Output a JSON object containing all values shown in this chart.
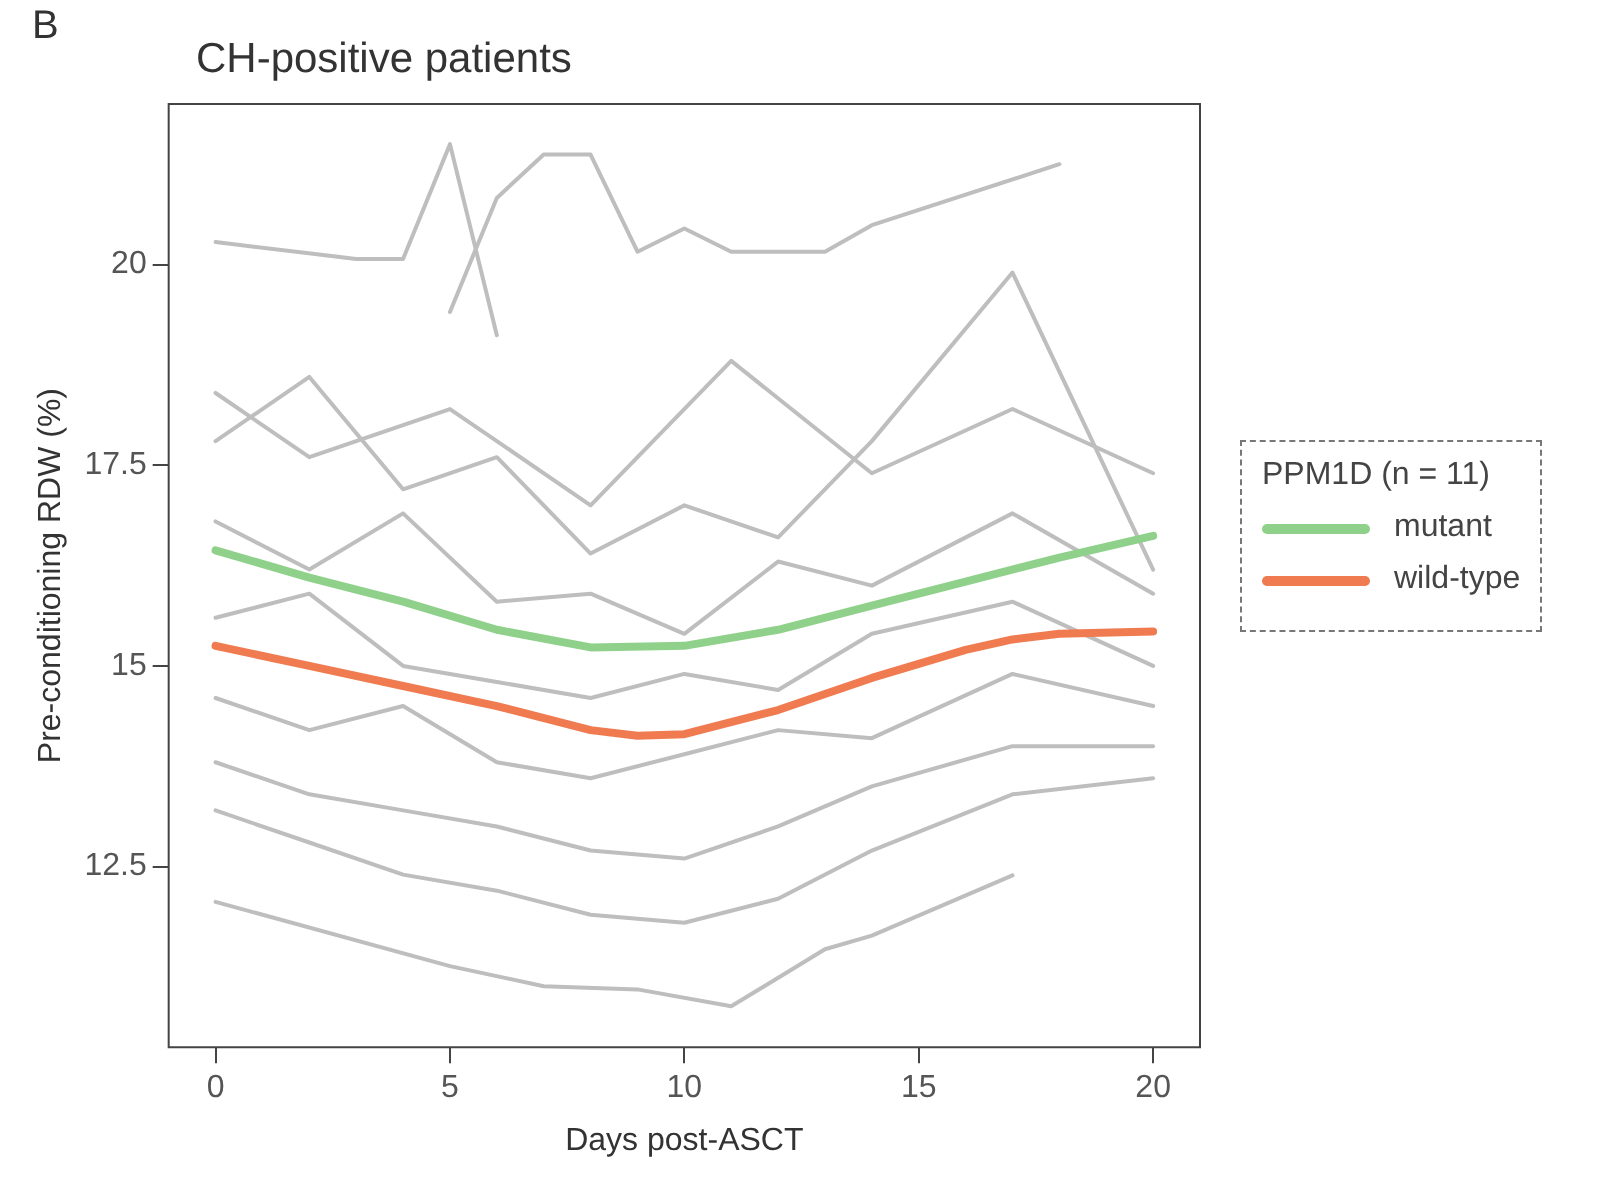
{
  "chart_data": {
    "type": "line",
    "title": "CH-positive patients",
    "xlabel": "Days post-ASCT",
    "ylabel": "Pre-conditioning RDW (%)",
    "legend_title": "PPM1D (n = 11)",
    "annotations": [
      "B"
    ],
    "xlim": [
      -1,
      21
    ],
    "ylim": [
      10.25,
      22
    ],
    "xticks": [
      0,
      5,
      10,
      15,
      20
    ],
    "yticks": [
      {
        "value": 12.5,
        "label": "12.5"
      },
      15,
      {
        "value": 17.5,
        "label": "17.5"
      },
      20
    ],
    "grid": false,
    "legend": "right",
    "marker": "none",
    "line_style": "solid",
    "series": [
      {
        "color": "#bebebe",
        "x": [
          0,
          3,
          4,
          5,
          6
        ],
        "values": [
          20.28,
          20.07,
          20.07,
          21.5,
          19.12
        ]
      },
      {
        "color": "#bebebe",
        "x": [
          5,
          6,
          7,
          8,
          9,
          10,
          11,
          12,
          13,
          14,
          18
        ],
        "values": [
          19.41,
          20.83,
          21.37,
          21.37,
          20.16,
          20.45,
          20.16,
          20.16,
          20.16,
          20.49,
          21.25
        ]
      },
      {
        "color": "#bebebe",
        "x": [
          0,
          5,
          7,
          9,
          11,
          13,
          14,
          17
        ],
        "values": [
          12.06,
          11.26,
          11.01,
          10.97,
          10.76,
          11.47,
          11.64,
          12.39
        ]
      },
      {
        "color": "#bebebe",
        "x": [
          0,
          2,
          4,
          6,
          8,
          10,
          12,
          14,
          17,
          20
        ],
        "values": [
          17.8,
          18.6,
          17.2,
          17.6,
          16.4,
          17.0,
          16.6,
          17.8,
          19.9,
          16.2
        ]
      },
      {
        "color": "#bebebe",
        "x": [
          0,
          2,
          4,
          6,
          8,
          10,
          12,
          14,
          17,
          20
        ],
        "values": [
          16.8,
          16.2,
          16.9,
          15.8,
          15.9,
          15.4,
          16.3,
          16.0,
          16.9,
          15.9
        ]
      },
      {
        "color": "#bebebe",
        "x": [
          0,
          2,
          4,
          6,
          8,
          10,
          12,
          14,
          17,
          20
        ],
        "values": [
          15.6,
          15.9,
          15.0,
          14.8,
          14.6,
          14.9,
          14.7,
          15.4,
          15.8,
          15.0
        ]
      },
      {
        "color": "#bebebe",
        "x": [
          0,
          2,
          4,
          6,
          8,
          10,
          12,
          14,
          17,
          20
        ],
        "values": [
          14.6,
          14.2,
          14.5,
          13.8,
          13.6,
          13.9,
          14.2,
          14.1,
          14.9,
          14.5
        ]
      },
      {
        "color": "#bebebe",
        "x": [
          0,
          2,
          4,
          6,
          8,
          10,
          12,
          14,
          17,
          20
        ],
        "values": [
          13.8,
          13.4,
          13.2,
          13.0,
          12.7,
          12.6,
          13.0,
          13.5,
          14.0,
          14.0
        ]
      },
      {
        "color": "#bebebe",
        "x": [
          0,
          2,
          4,
          6,
          8,
          10,
          12,
          14,
          17,
          20
        ],
        "values": [
          13.2,
          12.8,
          12.4,
          12.2,
          11.9,
          11.8,
          12.1,
          12.7,
          13.4,
          13.6
        ]
      },
      {
        "color": "#bebebe",
        "x": [
          0,
          2,
          5,
          8,
          11,
          14,
          17,
          20
        ],
        "values": [
          18.4,
          17.6,
          18.2,
          17.0,
          18.8,
          17.4,
          18.2,
          17.4
        ]
      },
      {
        "name": "mutant",
        "color": "#8fd18a",
        "x": [
          0,
          2,
          4,
          6,
          8,
          10,
          12,
          14,
          16,
          18,
          20
        ],
        "values": [
          16.44,
          16.1,
          15.8,
          15.45,
          15.23,
          15.25,
          15.45,
          15.75,
          16.05,
          16.35,
          16.62
        ]
      },
      {
        "name": "wild-type",
        "color": "#f07b50",
        "x": [
          0,
          2,
          4,
          6,
          8,
          9,
          10,
          12,
          14,
          16,
          17,
          18,
          20
        ],
        "values": [
          15.25,
          15.0,
          14.75,
          14.5,
          14.2,
          14.13,
          14.15,
          14.45,
          14.85,
          15.2,
          15.33,
          15.4,
          15.43
        ]
      }
    ]
  }
}
